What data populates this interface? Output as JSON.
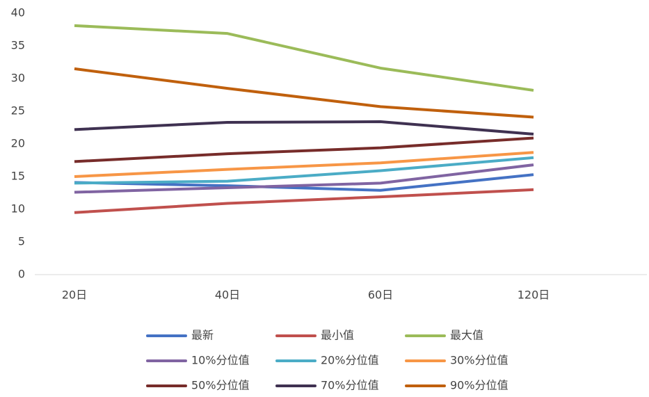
{
  "chart_data": {
    "type": "line",
    "categories": [
      "20日",
      "40日",
      "60日",
      "120日"
    ],
    "series": [
      {
        "name": "最新",
        "color": "#4472c4",
        "values": [
          14.1,
          13.6,
          12.9,
          15.3
        ]
      },
      {
        "name": "最小值",
        "color": "#c0504d",
        "values": [
          9.5,
          10.9,
          11.9,
          13.0
        ]
      },
      {
        "name": "最大值",
        "color": "#9bbb59",
        "values": [
          38.1,
          36.9,
          31.6,
          28.2
        ]
      },
      {
        "name": "10%分位值",
        "color": "#8064a2",
        "values": [
          12.6,
          13.3,
          14.0,
          16.8
        ]
      },
      {
        "name": "20%分位值",
        "color": "#4bacc6",
        "values": [
          14.0,
          14.3,
          15.9,
          17.9
        ]
      },
      {
        "name": "30%分位值",
        "color": "#f79646",
        "values": [
          15.0,
          16.1,
          17.1,
          18.7
        ]
      },
      {
        "name": "50%分位值",
        "color": "#772c2a",
        "values": [
          17.3,
          18.5,
          19.4,
          20.9
        ]
      },
      {
        "name": "70%分位值",
        "color": "#3f3151",
        "values": [
          22.2,
          23.3,
          23.4,
          21.5
        ]
      },
      {
        "name": "90%分位值",
        "color": "#c0600d",
        "values": [
          31.5,
          28.5,
          25.7,
          24.1
        ]
      }
    ],
    "ylim": [
      0,
      40
    ],
    "yticks": [
      0,
      5,
      10,
      15,
      20,
      25,
      30,
      35,
      40
    ],
    "legend": "bottom"
  }
}
